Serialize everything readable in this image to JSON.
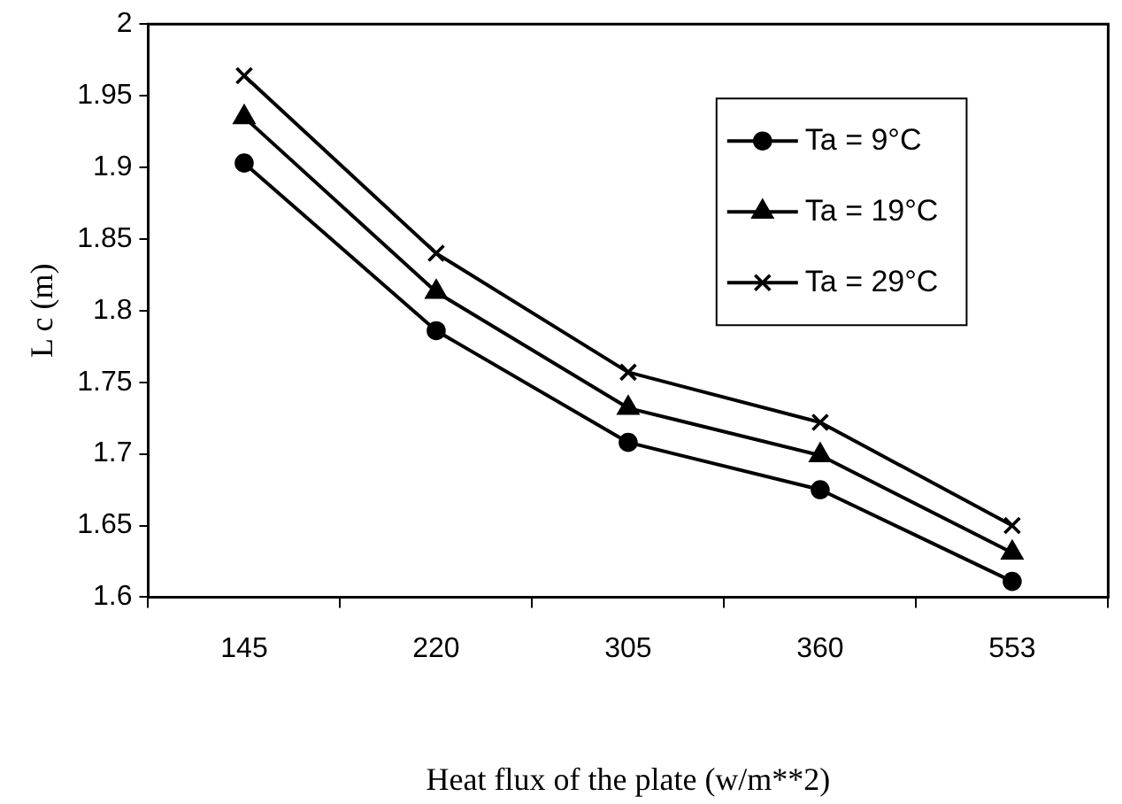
{
  "chart_data": {
    "type": "line",
    "xlabel": "Heat flux of the plate (w/m**2)",
    "ylabel": "L c (m)",
    "categories": [
      "145",
      "220",
      "305",
      "360",
      "553"
    ],
    "series": [
      {
        "name": "Ta = 9°C",
        "color": "#000000",
        "marker": "circle",
        "values": [
          1.903,
          1.786,
          1.708,
          1.675,
          1.611
        ]
      },
      {
        "name": "Ta = 19°C",
        "color": "#000000",
        "marker": "triangle",
        "values": [
          1.935,
          1.813,
          1.732,
          1.699,
          1.631
        ]
      },
      {
        "name": "Ta = 29°C",
        "color": "#000000",
        "marker": "cross",
        "values": [
          1.964,
          1.84,
          1.757,
          1.722,
          1.65
        ]
      }
    ],
    "ylim": [
      1.6,
      2
    ],
    "yticks": [
      1.6,
      1.65,
      1.7,
      1.75,
      1.8,
      1.85,
      1.9,
      1.95,
      2
    ],
    "grid": false,
    "legend": "top right",
    "line_style": "solid"
  }
}
